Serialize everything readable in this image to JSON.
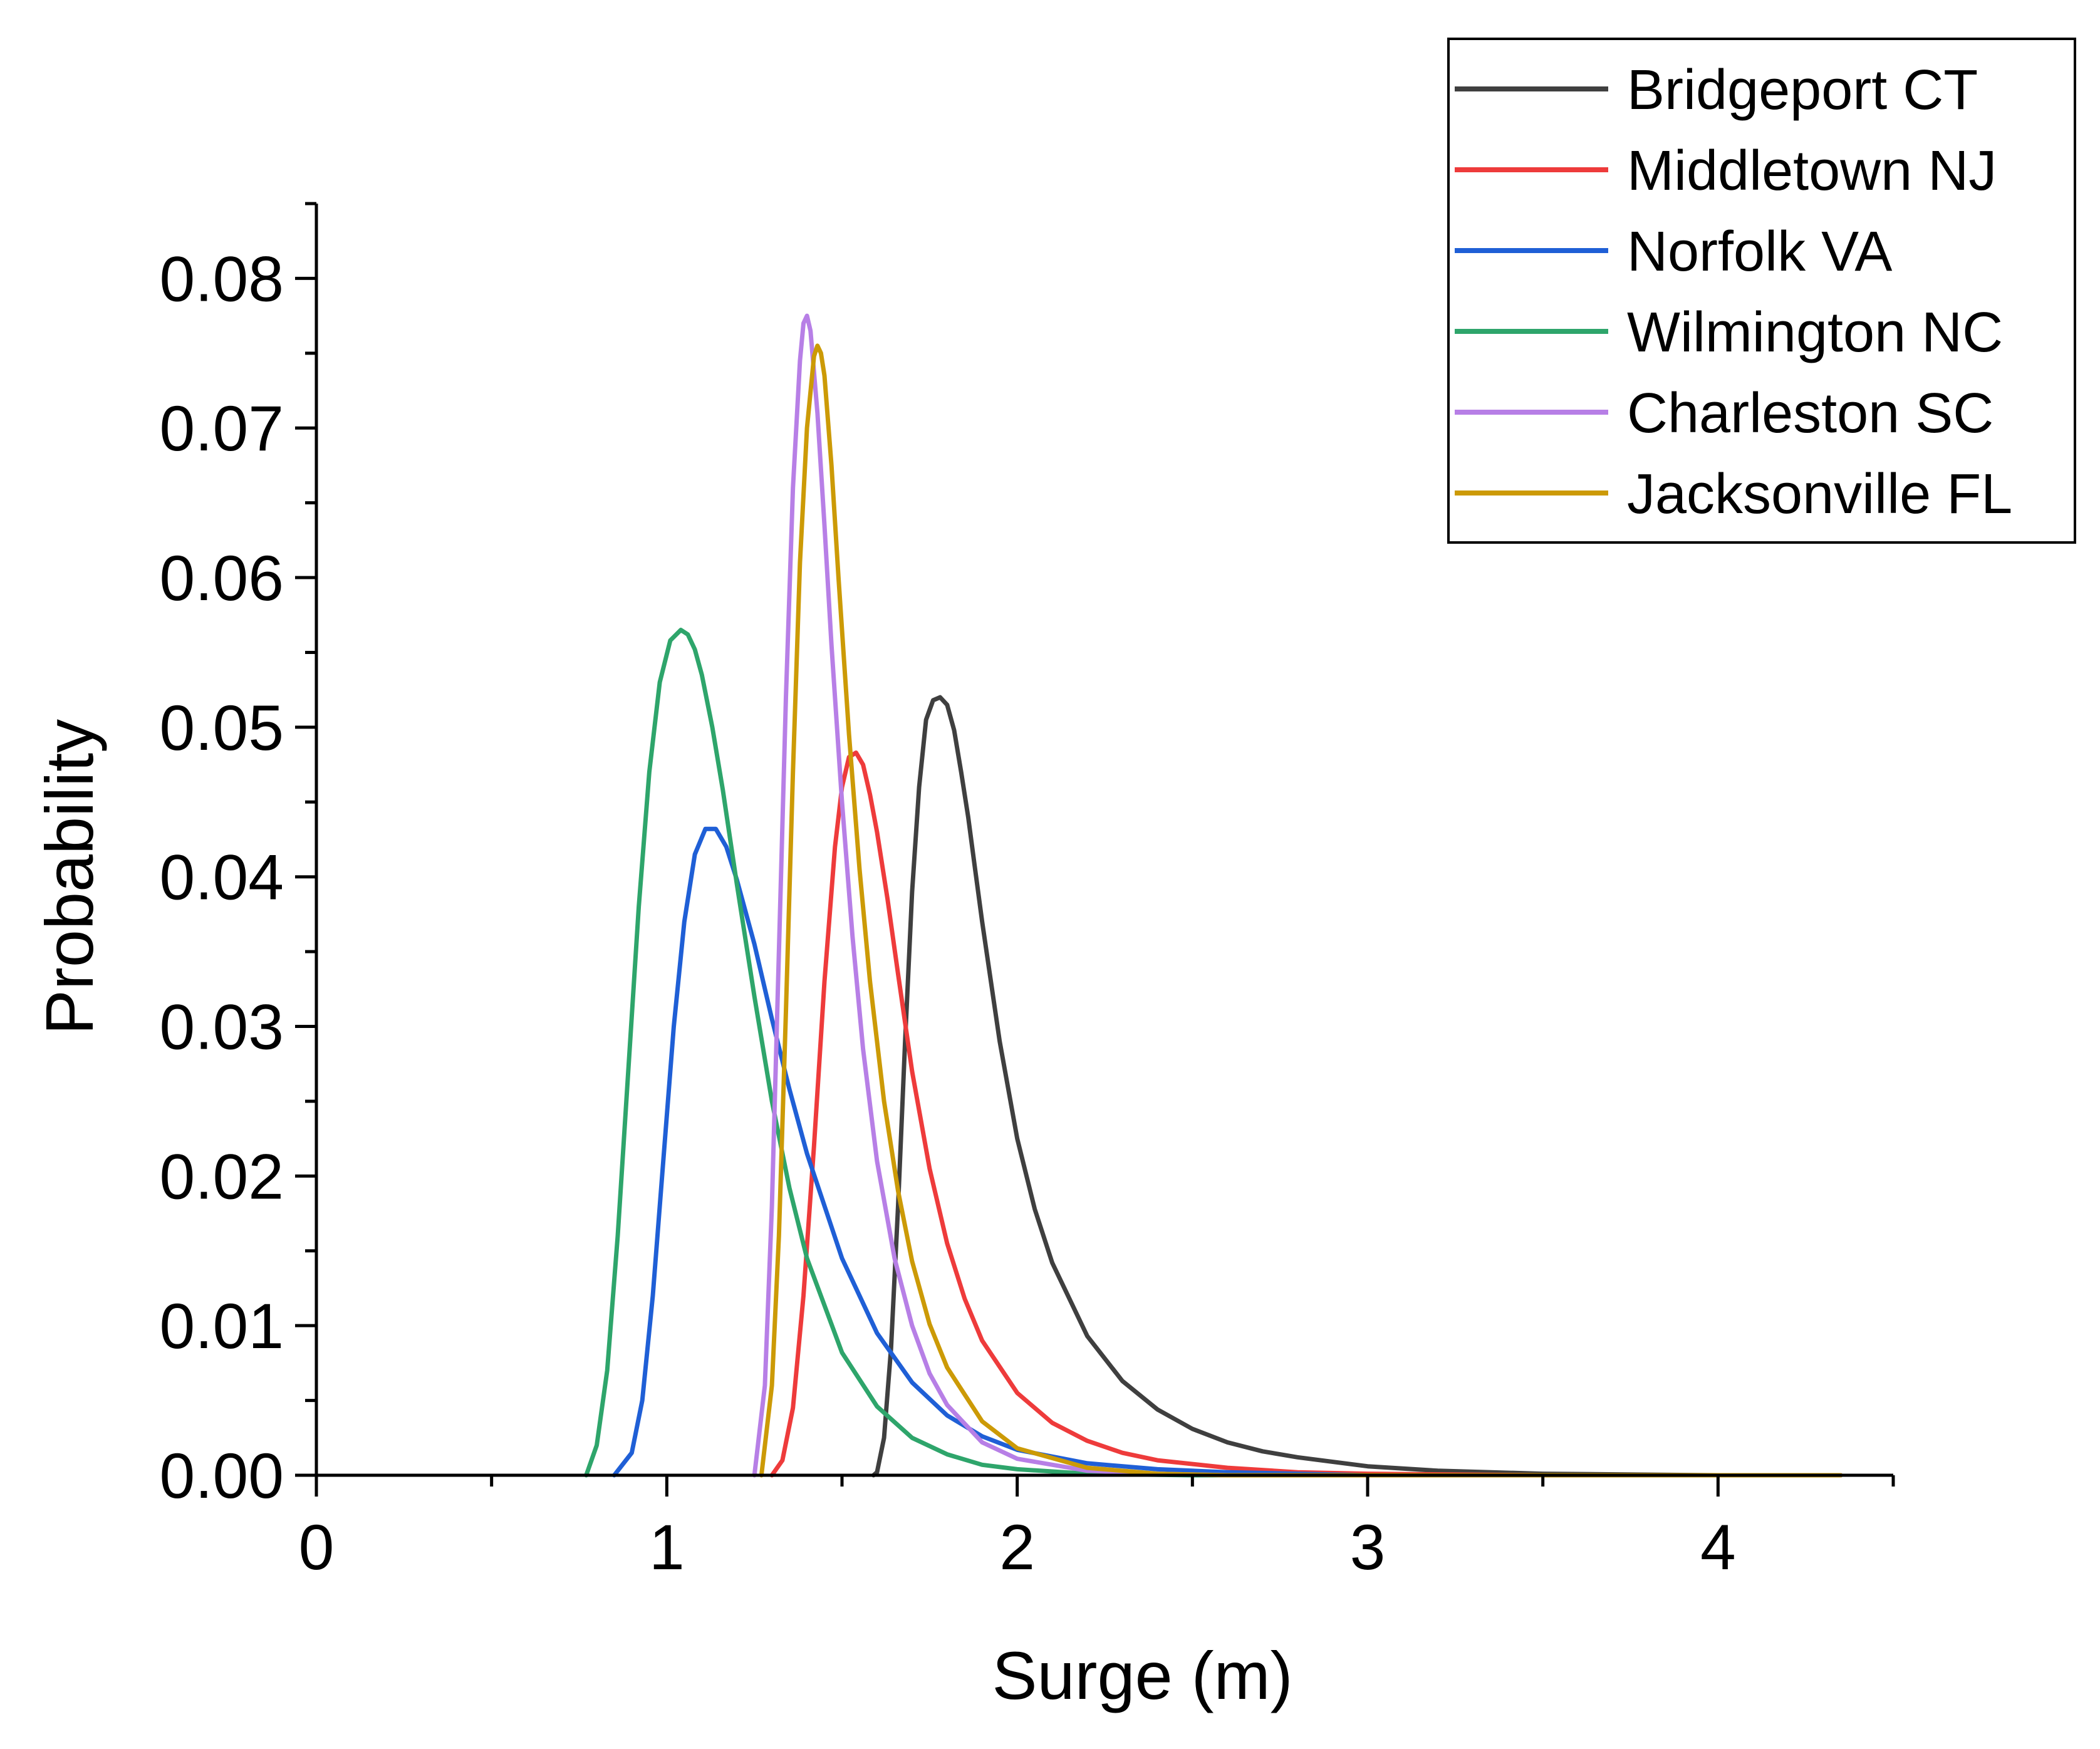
{
  "chart_data": {
    "type": "line",
    "title": "",
    "xlabel": "Surge (m)",
    "ylabel": "Probability",
    "xlim": [
      0,
      4.5
    ],
    "ylim": [
      0,
      0.085
    ],
    "xticks": [
      0,
      1,
      2,
      3,
      4
    ],
    "xtick_labels": [
      "0",
      "1",
      "2",
      "3",
      "4"
    ],
    "yticks": [
      0,
      0.01,
      0.02,
      0.03,
      0.04,
      0.05,
      0.06,
      0.07,
      0.08
    ],
    "ytick_labels": [
      "0.00",
      "0.01",
      "0.02",
      "0.03",
      "0.04",
      "0.05",
      "0.06",
      "0.07",
      "0.08"
    ],
    "grid": false,
    "legend_position": "top-right",
    "series": [
      {
        "name": "Bridgeport CT",
        "color": "#3f3f3f",
        "x": [
          1.59,
          1.6,
          1.62,
          1.64,
          1.66,
          1.68,
          1.7,
          1.72,
          1.74,
          1.76,
          1.78,
          1.8,
          1.82,
          1.84,
          1.86,
          1.88,
          1.9,
          1.95,
          2.0,
          2.05,
          2.1,
          2.2,
          2.3,
          2.4,
          2.5,
          2.6,
          2.7,
          2.8,
          3.0,
          3.2,
          3.5,
          4.0,
          4.2
        ],
        "y": [
          0.0,
          0.0002,
          0.0025,
          0.0085,
          0.018,
          0.029,
          0.039,
          0.046,
          0.0505,
          0.0518,
          0.052,
          0.0515,
          0.0498,
          0.047,
          0.044,
          0.0405,
          0.037,
          0.029,
          0.0225,
          0.0178,
          0.0142,
          0.0093,
          0.0063,
          0.0044,
          0.0031,
          0.0022,
          0.0016,
          0.0012,
          0.0006,
          0.0003,
          0.0001,
          0.0,
          0.0
        ]
      },
      {
        "name": "Middletown NJ",
        "color": "#ee3b3b",
        "x": [
          1.3,
          1.33,
          1.36,
          1.39,
          1.42,
          1.45,
          1.48,
          1.5,
          1.52,
          1.54,
          1.56,
          1.58,
          1.6,
          1.63,
          1.66,
          1.7,
          1.75,
          1.8,
          1.85,
          1.9,
          2.0,
          2.1,
          2.2,
          2.3,
          2.4,
          2.6,
          2.8,
          3.0,
          3.5,
          4.0,
          4.35
        ],
        "y": [
          0.0,
          0.001,
          0.0045,
          0.012,
          0.022,
          0.033,
          0.042,
          0.046,
          0.048,
          0.0483,
          0.0475,
          0.0455,
          0.043,
          0.0385,
          0.0335,
          0.027,
          0.0205,
          0.0155,
          0.0118,
          0.009,
          0.0055,
          0.0035,
          0.0023,
          0.0015,
          0.001,
          0.0005,
          0.0002,
          0.0001,
          0.0,
          0.0,
          0.0
        ]
      },
      {
        "name": "Norfolk VA",
        "color": "#1f5fd6",
        "x": [
          0.85,
          0.9,
          0.93,
          0.96,
          0.99,
          1.02,
          1.05,
          1.08,
          1.11,
          1.14,
          1.17,
          1.2,
          1.25,
          1.3,
          1.35,
          1.4,
          1.5,
          1.6,
          1.7,
          1.8,
          1.9,
          2.0,
          2.2,
          2.4,
          2.6,
          3.0,
          3.5,
          4.0,
          4.35
        ],
        "y": [
          0.0,
          0.0015,
          0.005,
          0.012,
          0.021,
          0.03,
          0.037,
          0.0415,
          0.0432,
          0.0432,
          0.042,
          0.0398,
          0.0355,
          0.0305,
          0.0258,
          0.0215,
          0.0145,
          0.0095,
          0.0062,
          0.004,
          0.0026,
          0.0017,
          0.0008,
          0.0004,
          0.0002,
          0.0,
          0.0,
          0.0,
          0.0
        ]
      },
      {
        "name": "Wilmington NC",
        "color": "#2ea56b",
        "x": [
          0.77,
          0.8,
          0.83,
          0.86,
          0.89,
          0.92,
          0.95,
          0.98,
          1.01,
          1.04,
          1.06,
          1.08,
          1.1,
          1.13,
          1.16,
          1.2,
          1.25,
          1.3,
          1.35,
          1.4,
          1.5,
          1.6,
          1.7,
          1.8,
          1.9,
          2.0,
          2.2,
          2.5,
          3.0,
          3.5,
          4.0,
          4.35
        ],
        "y": [
          0.0,
          0.002,
          0.007,
          0.016,
          0.027,
          0.038,
          0.047,
          0.053,
          0.0558,
          0.0565,
          0.0562,
          0.0552,
          0.0535,
          0.05,
          0.0458,
          0.0395,
          0.032,
          0.025,
          0.0192,
          0.0145,
          0.0082,
          0.0046,
          0.0025,
          0.0014,
          0.0007,
          0.0004,
          0.0001,
          0.0,
          0.0,
          0.0,
          0.0,
          0.0
        ]
      },
      {
        "name": "Charleston SC",
        "color": "#b77fe6",
        "x": [
          1.25,
          1.28,
          1.3,
          1.32,
          1.34,
          1.36,
          1.38,
          1.39,
          1.4,
          1.41,
          1.43,
          1.45,
          1.47,
          1.5,
          1.53,
          1.56,
          1.6,
          1.65,
          1.7,
          1.75,
          1.8,
          1.9,
          2.0,
          2.2,
          2.4,
          2.6,
          3.0,
          3.5,
          4.0,
          4.35
        ],
        "y": [
          0.0,
          0.006,
          0.018,
          0.035,
          0.052,
          0.066,
          0.0745,
          0.077,
          0.0775,
          0.0765,
          0.071,
          0.0635,
          0.0555,
          0.045,
          0.036,
          0.0285,
          0.021,
          0.0145,
          0.01,
          0.0068,
          0.0047,
          0.0022,
          0.0011,
          0.0003,
          0.0001,
          0.0,
          0.0,
          0.0,
          0.0,
          0.0
        ]
      },
      {
        "name": "Jacksonville FL",
        "color": "#cc9a06",
        "x": [
          1.27,
          1.3,
          1.32,
          1.34,
          1.36,
          1.38,
          1.4,
          1.42,
          1.43,
          1.44,
          1.45,
          1.47,
          1.49,
          1.52,
          1.55,
          1.58,
          1.62,
          1.66,
          1.7,
          1.75,
          1.8,
          1.9,
          2.0,
          2.2,
          2.4,
          2.6,
          3.0,
          3.5,
          4.0,
          4.35
        ],
        "y": [
          0.0,
          0.006,
          0.016,
          0.031,
          0.047,
          0.061,
          0.07,
          0.0748,
          0.0755,
          0.075,
          0.0735,
          0.0675,
          0.06,
          0.0495,
          0.0405,
          0.033,
          0.025,
          0.019,
          0.0143,
          0.0101,
          0.0072,
          0.0036,
          0.0018,
          0.0005,
          0.0001,
          0.0,
          0.0,
          0.0,
          0.0,
          0.0
        ]
      }
    ]
  }
}
